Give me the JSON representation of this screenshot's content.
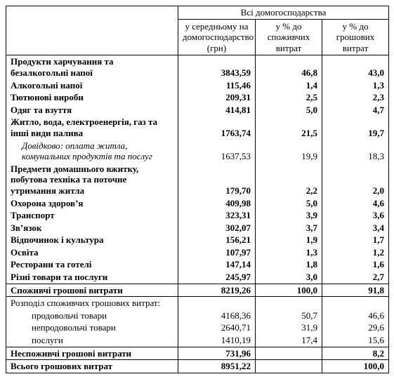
{
  "header": {
    "group": "Всі домогосподарства",
    "col1": "у середньому на домогосподарство (грн)",
    "col2": "у % до споживчих витрат",
    "col3": "у % до грошових витрат"
  },
  "rows": [
    {
      "label": "Продукти харчування та безалкогольні напої",
      "v1": "3843,59",
      "v2": "46,8",
      "v3": "43,0",
      "bold": true
    },
    {
      "label": "Алкогольні напої",
      "v1": "115,46",
      "v2": "1,4",
      "v3": "1,3",
      "bold": true
    },
    {
      "label": "Тютюнові вироби",
      "v1": "209,31",
      "v2": "2,5",
      "v3": "2,3",
      "bold": true
    },
    {
      "label": "Одяг та взуття",
      "v1": "414,81",
      "v2": "5,0",
      "v3": "4,7",
      "bold": true
    },
    {
      "label": "Житло, вода, електроенергія, газ та інші види палива",
      "v1": "1763,74",
      "v2": "21,5",
      "v3": "19,7",
      "bold": true
    },
    {
      "label": "Довідково: оплата житла, комунальних продуктів та послуг",
      "v1": "1637,53",
      "v2": "19,9",
      "v3": "18,3",
      "italic": true,
      "indent": 1
    },
    {
      "label": "Предмети домашнього вжитку, побутова техніка та поточне утримання житла",
      "v1": "179,70",
      "v2": "2,2",
      "v3": "2,0",
      "bold": true
    },
    {
      "label": "Охорона здоров’я",
      "v1": "409,98",
      "v2": "5,0",
      "v3": "4,6",
      "bold": true
    },
    {
      "label": "Транспорт",
      "v1": "323,31",
      "v2": "3,9",
      "v3": "3,6",
      "bold": true
    },
    {
      "label": "Зв’язок",
      "v1": "302,07",
      "v2": "3,7",
      "v3": "3,4",
      "bold": true
    },
    {
      "label": "Відпочинок і культура",
      "v1": "156,21",
      "v2": "1,9",
      "v3": "1,7",
      "bold": true
    },
    {
      "label": "Освіта",
      "v1": "107,97",
      "v2": "1,3",
      "v3": "1,2",
      "bold": true
    },
    {
      "label": "Ресторани та готелі",
      "v1": "147,14",
      "v2": "1,8",
      "v3": "1,6",
      "bold": true
    },
    {
      "label": "Різні товари та послуги",
      "v1": "245,97",
      "v2": "3,0",
      "v3": "2,7",
      "bold": true
    }
  ],
  "consumer_total": {
    "label": "Споживчі грошові витрати",
    "v1": "8219,26",
    "v2": "100,0",
    "v3": "91,8"
  },
  "breakdown_header": "Розподіл споживчих грошових витрат:",
  "breakdown": [
    {
      "label": "продовольчі товари",
      "v1": "4168,36",
      "v2": "50,7",
      "v3": "46,6"
    },
    {
      "label": "непродовольчі товари",
      "v1": "2640,71",
      "v2": "31,9",
      "v3": "29,6"
    },
    {
      "label": "послуги",
      "v1": "1410,19",
      "v2": "17,4",
      "v3": "15,6"
    }
  ],
  "nonconsumer": {
    "label": "Неспоживчі грошові витрати",
    "v1": "731,96",
    "v2": "",
    "v3": "8,2"
  },
  "grand_total": {
    "label": "Всього грошових витрат",
    "v1": "8951,22",
    "v2": "",
    "v3": "100,0"
  }
}
